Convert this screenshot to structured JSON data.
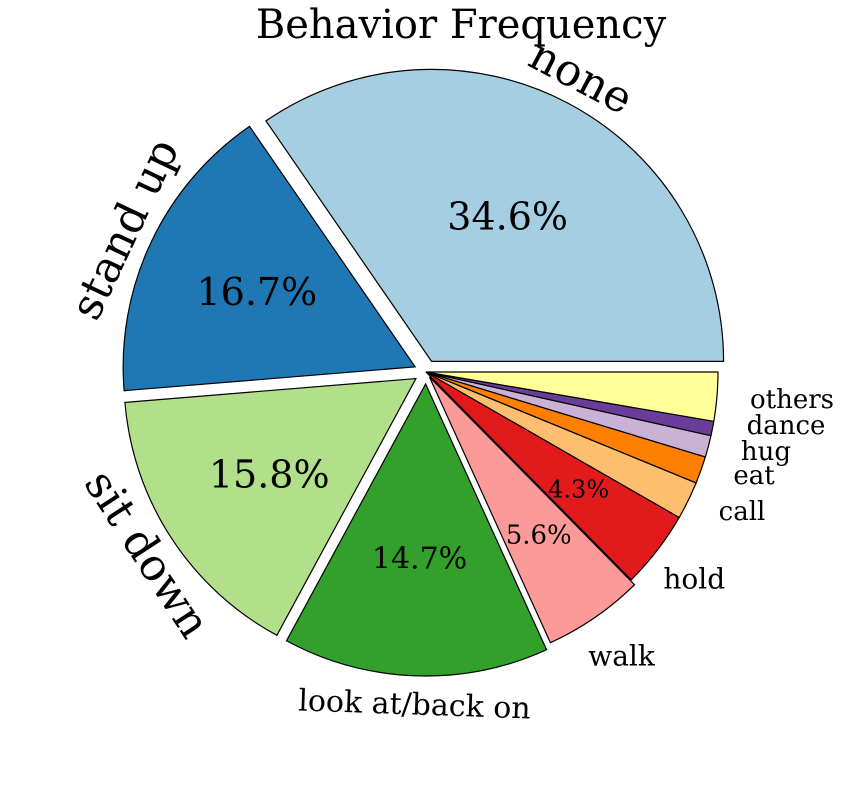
{
  "chart_data": {
    "type": "pie",
    "title": "Behavior Frequency",
    "slices": [
      {
        "label": "none",
        "value": 34.6,
        "pct_label": "34.6%",
        "color": "#a6cee3"
      },
      {
        "label": "stand up",
        "value": 16.7,
        "pct_label": "16.7%",
        "color": "#1f78b4"
      },
      {
        "label": "sit down",
        "value": 15.8,
        "pct_label": "15.8%",
        "color": "#b2df8a"
      },
      {
        "label": "look at/back on",
        "value": 14.7,
        "pct_label": "14.7%",
        "color": "#33a02c"
      },
      {
        "label": "walk",
        "value": 5.6,
        "pct_label": "5.6%",
        "color": "#fb9a99"
      },
      {
        "label": "hold",
        "value": 4.3,
        "pct_label": "4.3%",
        "color": "#e31a1c"
      },
      {
        "label": "call",
        "value": 2.1,
        "pct_label": "",
        "color": "#fdbf6f"
      },
      {
        "label": "eat",
        "value": 1.5,
        "pct_label": "",
        "color": "#ff7f00"
      },
      {
        "label": "hug",
        "value": 1.2,
        "pct_label": "",
        "color": "#cab2d6"
      },
      {
        "label": "dance",
        "value": 0.8,
        "pct_label": "",
        "color": "#6a3d9a"
      },
      {
        "label": "others",
        "value": 2.7,
        "pct_label": "",
        "color": "#ffff99"
      }
    ]
  }
}
